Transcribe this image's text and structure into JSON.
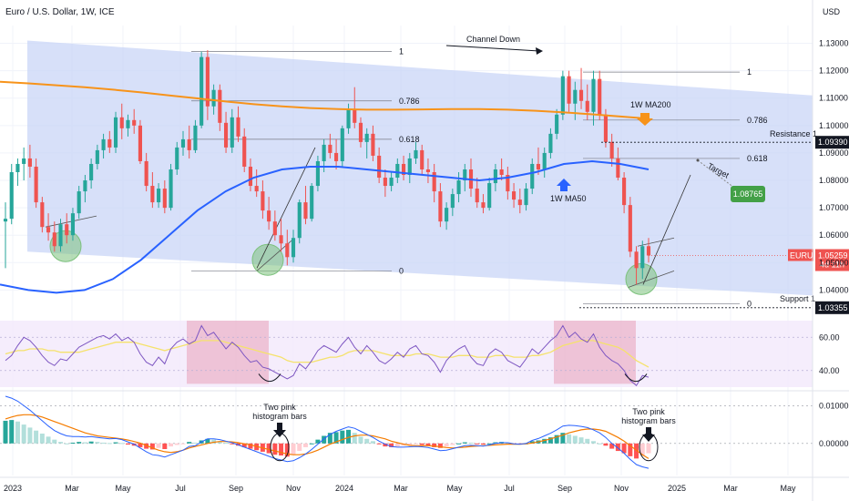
{
  "header": {
    "title": "Euro / U.S. Dollar, 1W, ICE",
    "currency": "USD"
  },
  "colors": {
    "bull": "#26a69a",
    "bear": "#ef5350",
    "ma200": "#f7931a",
    "ma50": "#2962ff",
    "channel": "#c9d5f7",
    "rsi": "#7e57c2",
    "rsi_ma": "#f5e26b",
    "rsi_band": "#f3e9fb",
    "pink_zone": "#e8a0b8",
    "green_circle": "#7cc17c",
    "target_badge": "#43a047",
    "price_badge": "#ef5350",
    "dark_badge": "#131722",
    "macd_line": "#2962ff",
    "signal_line": "#f57c00",
    "hist_strong_up": "#26a69a",
    "hist_weak_up": "#b2dfdb",
    "hist_strong_down": "#ff5252",
    "hist_weak_down": "#ffcdd2"
  },
  "icons": {
    "arrow_down": "arrow-down-icon",
    "arrow_up": "arrow-up-icon"
  },
  "chart_data": {
    "type": "candlestick",
    "title": "Euro / U.S. Dollar, 1W, ICE",
    "price_axis": {
      "ylim": [
        1.0295,
        1.1365
      ],
      "ticks": [
        "1.13000",
        "1.12000",
        "1.11000",
        "1.10000",
        "1.09000",
        "1.08000",
        "1.07000",
        "1.06000",
        "1.05000",
        "1.04000"
      ]
    },
    "time_axis": {
      "labels": [
        "2023",
        "Mar",
        "May",
        "Jul",
        "Sep",
        "Nov",
        "2024",
        "Mar",
        "May",
        "Jul",
        "Sep",
        "Nov",
        "2025",
        "Mar",
        "May"
      ]
    },
    "series_candles": [
      [
        1.065,
        1.072,
        1.048,
        1.066
      ],
      [
        1.066,
        1.086,
        1.064,
        1.083
      ],
      [
        1.083,
        1.088,
        1.078,
        1.086
      ],
      [
        1.086,
        1.092,
        1.08,
        1.088
      ],
      [
        1.088,
        1.093,
        1.081,
        1.085
      ],
      [
        1.085,
        1.088,
        1.07,
        1.072
      ],
      [
        1.072,
        1.074,
        1.061,
        1.063
      ],
      [
        1.063,
        1.068,
        1.058,
        1.061
      ],
      [
        1.061,
        1.065,
        1.054,
        1.056
      ],
      [
        1.056,
        1.066,
        1.054,
        1.064
      ],
      [
        1.064,
        1.068,
        1.057,
        1.06
      ],
      [
        1.06,
        1.07,
        1.058,
        1.068
      ],
      [
        1.068,
        1.078,
        1.066,
        1.076
      ],
      [
        1.076,
        1.082,
        1.072,
        1.08
      ],
      [
        1.08,
        1.088,
        1.077,
        1.086
      ],
      [
        1.086,
        1.093,
        1.084,
        1.091
      ],
      [
        1.091,
        1.097,
        1.088,
        1.095
      ],
      [
        1.095,
        1.098,
        1.09,
        1.092
      ],
      [
        1.092,
        1.105,
        1.09,
        1.103
      ],
      [
        1.103,
        1.108,
        1.095,
        1.099
      ],
      [
        1.099,
        1.104,
        1.096,
        1.102
      ],
      [
        1.102,
        1.106,
        1.097,
        1.1
      ],
      [
        1.1,
        1.102,
        1.086,
        1.087
      ],
      [
        1.087,
        1.09,
        1.076,
        1.078
      ],
      [
        1.078,
        1.083,
        1.07,
        1.072
      ],
      [
        1.072,
        1.079,
        1.07,
        1.077
      ],
      [
        1.077,
        1.08,
        1.068,
        1.07
      ],
      [
        1.07,
        1.086,
        1.069,
        1.084
      ],
      [
        1.084,
        1.094,
        1.082,
        1.092
      ],
      [
        1.092,
        1.098,
        1.089,
        1.095
      ],
      [
        1.095,
        1.1,
        1.088,
        1.091
      ],
      [
        1.091,
        1.102,
        1.09,
        1.1
      ],
      [
        1.1,
        1.127,
        1.099,
        1.125
      ],
      [
        1.125,
        1.1275,
        1.102,
        1.107
      ],
      [
        1.107,
        1.115,
        1.104,
        1.113
      ],
      [
        1.113,
        1.115,
        1.098,
        1.101
      ],
      [
        1.101,
        1.105,
        1.09,
        1.092
      ],
      [
        1.092,
        1.106,
        1.09,
        1.103
      ],
      [
        1.103,
        1.107,
        1.094,
        1.096
      ],
      [
        1.096,
        1.099,
        1.083,
        1.085
      ],
      [
        1.085,
        1.088,
        1.076,
        1.078
      ],
      [
        1.078,
        1.084,
        1.074,
        1.076
      ],
      [
        1.076,
        1.08,
        1.066,
        1.069
      ],
      [
        1.069,
        1.074,
        1.062,
        1.065
      ],
      [
        1.065,
        1.069,
        1.058,
        1.06
      ],
      [
        1.06,
        1.066,
        1.054,
        1.057
      ],
      [
        1.057,
        1.062,
        1.049,
        1.052
      ],
      [
        1.052,
        1.062,
        1.05,
        1.059
      ],
      [
        1.059,
        1.073,
        1.057,
        1.072
      ],
      [
        1.072,
        1.078,
        1.064,
        1.066
      ],
      [
        1.066,
        1.079,
        1.065,
        1.078
      ],
      [
        1.078,
        1.089,
        1.076,
        1.087
      ],
      [
        1.087,
        1.095,
        1.083,
        1.093
      ],
      [
        1.093,
        1.097,
        1.088,
        1.09
      ],
      [
        1.09,
        1.095,
        1.084,
        1.087
      ],
      [
        1.087,
        1.1,
        1.085,
        1.099
      ],
      [
        1.099,
        1.108,
        1.097,
        1.106
      ],
      [
        1.106,
        1.114,
        1.099,
        1.101
      ],
      [
        1.101,
        1.103,
        1.092,
        1.094
      ],
      [
        1.094,
        1.099,
        1.088,
        1.097
      ],
      [
        1.097,
        1.1,
        1.087,
        1.089
      ],
      [
        1.089,
        1.092,
        1.079,
        1.081
      ],
      [
        1.081,
        1.084,
        1.074,
        1.078
      ],
      [
        1.078,
        1.083,
        1.076,
        1.081
      ],
      [
        1.081,
        1.088,
        1.079,
        1.086
      ],
      [
        1.086,
        1.089,
        1.08,
        1.082
      ],
      [
        1.082,
        1.09,
        1.079,
        1.088
      ],
      [
        1.088,
        1.094,
        1.086,
        1.091
      ],
      [
        1.091,
        1.093,
        1.082,
        1.084
      ],
      [
        1.084,
        1.088,
        1.079,
        1.083
      ],
      [
        1.083,
        1.086,
        1.072,
        1.076
      ],
      [
        1.076,
        1.079,
        1.063,
        1.065
      ],
      [
        1.065,
        1.072,
        1.062,
        1.07
      ],
      [
        1.07,
        1.077,
        1.067,
        1.075
      ],
      [
        1.075,
        1.083,
        1.072,
        1.08
      ],
      [
        1.08,
        1.086,
        1.076,
        1.084
      ],
      [
        1.084,
        1.088,
        1.074,
        1.077
      ],
      [
        1.077,
        1.081,
        1.07,
        1.072
      ],
      [
        1.072,
        1.075,
        1.068,
        1.07
      ],
      [
        1.07,
        1.081,
        1.069,
        1.079
      ],
      [
        1.079,
        1.086,
        1.076,
        1.084
      ],
      [
        1.084,
        1.088,
        1.08,
        1.082
      ],
      [
        1.082,
        1.085,
        1.073,
        1.076
      ],
      [
        1.076,
        1.079,
        1.07,
        1.073
      ],
      [
        1.073,
        1.077,
        1.068,
        1.071
      ],
      [
        1.071,
        1.079,
        1.069,
        1.077
      ],
      [
        1.077,
        1.088,
        1.075,
        1.086
      ],
      [
        1.086,
        1.092,
        1.082,
        1.084
      ],
      [
        1.084,
        1.092,
        1.081,
        1.09
      ],
      [
        1.09,
        1.099,
        1.088,
        1.097
      ],
      [
        1.097,
        1.106,
        1.095,
        1.104
      ],
      [
        1.104,
        1.12,
        1.102,
        1.118
      ],
      [
        1.118,
        1.12,
        1.105,
        1.108
      ],
      [
        1.108,
        1.116,
        1.102,
        1.113
      ],
      [
        1.113,
        1.121,
        1.106,
        1.109
      ],
      [
        1.109,
        1.115,
        1.102,
        1.105
      ],
      [
        1.105,
        1.12,
        1.1,
        1.117
      ],
      [
        1.117,
        1.12,
        1.102,
        1.104
      ],
      [
        1.104,
        1.106,
        1.092,
        1.094
      ],
      [
        1.094,
        1.097,
        1.085,
        1.088
      ],
      [
        1.088,
        1.092,
        1.08,
        1.081
      ],
      [
        1.081,
        1.083,
        1.068,
        1.071
      ],
      [
        1.071,
        1.074,
        1.052,
        1.054
      ],
      [
        1.054,
        1.056,
        1.042,
        1.048
      ],
      [
        1.048,
        1.058,
        1.044,
        1.056
      ],
      [
        1.056,
        1.059,
        1.05,
        1.0526
      ]
    ],
    "ma200": [
      1.116,
      1.1154,
      1.1147,
      1.114,
      1.1131,
      1.1121,
      1.111,
      1.1099,
      1.1088,
      1.1078,
      1.107,
      1.1064,
      1.106,
      1.1058,
      1.1058,
      1.1059,
      1.106,
      1.106,
      1.1058,
      1.1054,
      1.1048,
      1.1041,
      1.1033,
      1.1025
    ],
    "ma50": [
      1.042,
      1.04,
      1.039,
      1.04,
      1.044,
      1.051,
      1.06,
      1.069,
      1.076,
      1.081,
      1.084,
      1.085,
      1.085,
      1.084,
      1.083,
      1.082,
      1.081,
      1.08,
      1.081,
      1.083,
      1.086,
      1.087,
      1.086,
      1.084
    ],
    "channel": {
      "upper": [
        1.131,
        1.111
      ],
      "lower": [
        1.054,
        1.038
      ]
    },
    "fib_levels": [
      {
        "label": "1",
        "value": 1.127
      },
      {
        "label": "0.786",
        "value": 1.109
      },
      {
        "label": "0.618",
        "value": 1.095
      },
      {
        "label": "0",
        "value": 1.047
      },
      {
        "label": "1",
        "value": 1.1195
      },
      {
        "label": "0.786",
        "value": 1.102
      },
      {
        "label": "0.618",
        "value": 1.088
      },
      {
        "label": "0",
        "value": 1.035
      }
    ],
    "price_badges": [
      {
        "label": "Resistance 1",
        "value": "1.09390",
        "level": 1.0939
      },
      {
        "label": "Support 1",
        "value": "1.03355",
        "level": 1.03355
      },
      {
        "label": "EURUSD",
        "value": "1.05259",
        "sub": "4d 11h",
        "level": 1.05259
      }
    ],
    "annotations": {
      "channel_down": "Channel Down",
      "ma200_label": "1W MA200",
      "ma50_label": "1W MA50",
      "target_label": "Target",
      "target_value": "1.08765",
      "pink_histogram_1": [
        "Two pink",
        "histogram bars"
      ],
      "pink_histogram_2": [
        "Two pink",
        "histogram bars"
      ]
    },
    "rsi": {
      "ticks": [
        "60.00",
        "40.00"
      ],
      "ylim": [
        30,
        70
      ],
      "values": [
        46,
        49,
        55,
        60,
        58,
        54,
        49,
        45,
        43,
        47,
        46,
        50,
        54,
        56,
        58,
        60,
        61,
        59,
        62,
        58,
        60,
        57,
        50,
        45,
        43,
        48,
        44,
        53,
        57,
        59,
        56,
        58,
        67,
        61,
        63,
        58,
        53,
        57,
        54,
        49,
        45,
        46,
        42,
        41,
        39,
        37,
        35,
        37,
        44,
        41,
        46,
        52,
        55,
        53,
        51,
        56,
        60,
        54,
        50,
        55,
        51,
        46,
        44,
        47,
        51,
        48,
        53,
        55,
        50,
        49,
        45,
        39,
        46,
        50,
        53,
        55,
        48,
        44,
        43,
        50,
        53,
        51,
        46,
        44,
        42,
        47,
        53,
        50,
        54,
        58,
        61,
        67,
        60,
        63,
        59,
        57,
        62,
        54,
        49,
        46,
        44,
        40,
        34,
        31,
        37,
        36
      ],
      "ma": [
        50,
        51,
        52,
        52,
        53,
        53,
        53,
        52,
        52,
        51,
        51,
        51,
        51,
        52,
        53,
        54,
        55,
        56,
        57,
        57,
        57,
        57,
        56,
        55,
        54,
        53,
        52,
        53,
        54,
        55,
        56,
        57,
        58,
        58,
        58,
        58,
        57,
        56,
        55,
        54,
        53,
        52,
        51,
        50,
        49,
        48,
        46,
        45,
        45,
        45,
        45,
        46,
        47,
        48,
        48,
        49,
        51,
        52,
        52,
        52,
        52,
        51,
        50,
        49,
        49,
        49,
        49,
        50,
        50,
        50,
        49,
        48,
        48,
        48,
        49,
        49,
        49,
        48,
        48,
        48,
        49,
        49,
        49,
        48,
        48,
        48,
        49,
        49,
        50,
        51,
        53,
        55,
        56,
        57,
        58,
        58,
        58,
        57,
        56,
        55,
        54,
        52,
        49,
        46,
        44,
        42
      ]
    },
    "macd": {
      "ticks": [
        "0.01000",
        "0.00000"
      ],
      "ylim": [
        -0.0085,
        0.0125
      ],
      "histogram": [
        0.006,
        0.0062,
        0.0058,
        0.005,
        0.0042,
        0.0034,
        0.0026,
        0.0018,
        0.001,
        0.0004,
        0.0,
        0.0002,
        0.0004,
        0.0003,
        0.0005,
        0.0004,
        0.0002,
        0.0001,
        0.0003,
        0.0001,
        -0.0003,
        -0.0006,
        -0.001,
        -0.0014,
        -0.0016,
        -0.0012,
        -0.0015,
        -0.0008,
        -0.0004,
        -0.0002,
        0.0004,
        0.0002,
        0.0008,
        0.0012,
        0.001,
        0.0006,
        0.0002,
        -0.0002,
        -0.0006,
        -0.001,
        -0.0014,
        -0.0018,
        -0.0022,
        -0.0026,
        -0.003,
        -0.0032,
        -0.0035,
        -0.003,
        -0.002,
        -0.001,
        0.0,
        0.001,
        0.002,
        0.0028,
        0.003,
        0.0034,
        0.0036,
        0.0028,
        0.0018,
        0.0012,
        0.0006,
        -0.0002,
        -0.0008,
        -0.001,
        -0.0008,
        -0.0006,
        -0.0004,
        -0.0002,
        -0.0004,
        -0.0006,
        -0.001,
        -0.0012,
        -0.0008,
        -0.0004,
        0.0,
        0.0003,
        0.0002,
        -0.0001,
        -0.0003,
        0.0,
        0.0003,
        0.0004,
        0.0002,
        -0.0002,
        -0.0003,
        0.0,
        0.0006,
        0.0008,
        0.0012,
        0.0016,
        0.0022,
        0.0028,
        0.0024,
        0.002,
        0.0016,
        0.0012,
        0.0006,
        0.0,
        -0.0006,
        -0.0014,
        -0.002,
        -0.0026,
        -0.0034,
        -0.004,
        -0.0032,
        -0.0026
      ],
      "macd_line": [
        0.0125,
        0.012,
        0.0112,
        0.01,
        0.0088,
        0.0074,
        0.006,
        0.0046,
        0.0034,
        0.0026,
        0.002,
        0.0018,
        0.0018,
        0.0017,
        0.0018,
        0.0016,
        0.0014,
        0.0012,
        0.0013,
        0.001,
        0.0004,
        -0.0002,
        -0.0012,
        -0.0022,
        -0.003,
        -0.0032,
        -0.0036,
        -0.003,
        -0.0024,
        -0.0018,
        -0.0008,
        -0.0006,
        0.0004,
        0.0012,
        0.0012,
        0.001,
        0.0006,
        0.0002,
        -0.0004,
        -0.001,
        -0.0016,
        -0.0022,
        -0.0028,
        -0.0034,
        -0.004,
        -0.0044,
        -0.0048,
        -0.0046,
        -0.0038,
        -0.0028,
        -0.0016,
        -0.0002,
        0.0012,
        0.0024,
        0.0032,
        0.0038,
        0.0044,
        0.004,
        0.0032,
        0.0024,
        0.0016,
        0.0006,
        -0.0002,
        -0.0008,
        -0.001,
        -0.001,
        -0.0009,
        -0.0008,
        -0.0009,
        -0.0011,
        -0.0015,
        -0.0019,
        -0.0018,
        -0.0014,
        -0.001,
        -0.0006,
        -0.0005,
        -0.0006,
        -0.0007,
        -0.0004,
        0.0,
        0.0002,
        0.0002,
        -0.0001,
        -0.0002,
        0.0,
        0.0008,
        0.0013,
        0.002,
        0.0027,
        0.0036,
        0.0046,
        0.0048,
        0.0047,
        0.0045,
        0.0042,
        0.0036,
        0.0028,
        0.0016,
        0.0,
        -0.0012,
        -0.0026,
        -0.0042,
        -0.0056,
        -0.0062,
        -0.0066
      ],
      "signal_line": [
        0.0065,
        0.007,
        0.0074,
        0.0076,
        0.0076,
        0.0074,
        0.007,
        0.0064,
        0.0058,
        0.0052,
        0.0046,
        0.004,
        0.0034,
        0.0028,
        0.0024,
        0.002,
        0.0018,
        0.0016,
        0.0014,
        0.0012,
        0.0009,
        0.0005,
        0.0001,
        -0.0005,
        -0.0012,
        -0.0018,
        -0.0022,
        -0.0024,
        -0.0022,
        -0.0018,
        -0.0012,
        -0.0008,
        -0.0004,
        0.0,
        0.0003,
        0.0005,
        0.0005,
        0.0004,
        0.0002,
        -0.0001,
        -0.0004,
        -0.0008,
        -0.0012,
        -0.0016,
        -0.002,
        -0.0024,
        -0.0028,
        -0.003,
        -0.003,
        -0.0028,
        -0.0024,
        -0.0018,
        -0.001,
        -0.0002,
        0.0004,
        0.001,
        0.0016,
        0.002,
        0.0022,
        0.0022,
        0.002,
        0.0016,
        0.0012,
        0.0006,
        0.0002,
        -0.0002,
        -0.0005,
        -0.0006,
        -0.0006,
        -0.0006,
        -0.0007,
        -0.0009,
        -0.0011,
        -0.0012,
        -0.0011,
        -0.001,
        -0.0008,
        -0.0007,
        -0.0006,
        -0.0005,
        -0.0004,
        -0.0003,
        -0.0002,
        -0.0002,
        -0.0002,
        -0.0001,
        0.0001,
        0.0004,
        0.0008,
        0.0012,
        0.0017,
        0.0022,
        0.0028,
        0.0032,
        0.0036,
        0.0038,
        0.0038,
        0.0036,
        0.0032,
        0.0024,
        0.0016,
        0.0006,
        -0.0006,
        -0.0018,
        -0.003,
        -0.004
      ]
    }
  }
}
